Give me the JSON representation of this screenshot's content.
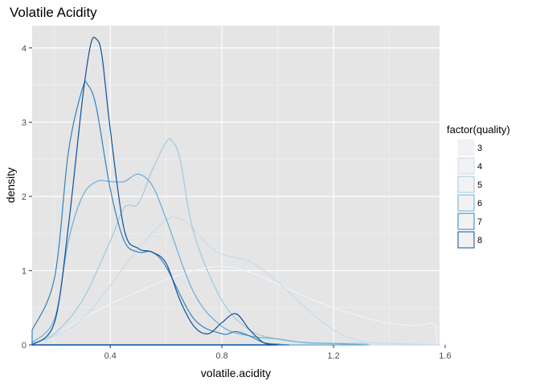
{
  "chart_data": {
    "type": "area",
    "title": "Volatile Acidity",
    "xlabel": "volatile.acidity",
    "ylabel": "density",
    "xlim": [
      0.12,
      1.58
    ],
    "ylim": [
      0,
      4.3
    ],
    "x_ticks": [
      0.4,
      0.8,
      1.2,
      1.6
    ],
    "x_tick_labels": [
      "0.4",
      "0.8",
      "1.2",
      "1.6"
    ],
    "y_ticks": [
      0,
      1,
      2,
      3,
      4
    ],
    "y_tick_labels": [
      "0",
      "1",
      "2",
      "3",
      "4"
    ],
    "grid": true,
    "background": "#e5e5e5",
    "legend": {
      "title": "factor(quality)",
      "position": "right",
      "items": [
        "3",
        "4",
        "5",
        "6",
        "7",
        "8"
      ]
    },
    "series": [
      {
        "name": "3",
        "color": "#eff3ff",
        "x": [
          0.12,
          0.2,
          0.3,
          0.4,
          0.5,
          0.6,
          0.7,
          0.8,
          0.9,
          1.0,
          1.1,
          1.2,
          1.3,
          1.4,
          1.5,
          1.56,
          1.57
        ],
        "y": [
          0.02,
          0.12,
          0.35,
          0.55,
          0.72,
          0.88,
          1.0,
          1.06,
          0.98,
          0.82,
          0.65,
          0.5,
          0.38,
          0.29,
          0.26,
          0.28,
          0.0
        ]
      },
      {
        "name": "4",
        "color": "#c6dbef",
        "x": [
          0.12,
          0.2,
          0.3,
          0.4,
          0.5,
          0.6,
          0.65,
          0.7,
          0.75,
          0.8,
          0.9,
          1.0,
          1.1,
          1.2,
          1.3,
          1.4,
          1.5,
          1.58
        ],
        "y": [
          0.02,
          0.12,
          0.35,
          0.8,
          1.3,
          1.68,
          1.7,
          1.55,
          1.35,
          1.22,
          1.12,
          0.85,
          0.5,
          0.2,
          0.05,
          0.02,
          0.01,
          0.0
        ]
      },
      {
        "name": "5",
        "color": "#9ecae1",
        "x": [
          0.12,
          0.2,
          0.3,
          0.4,
          0.45,
          0.5,
          0.55,
          0.6,
          0.62,
          0.65,
          0.7,
          0.8,
          0.9,
          1.0,
          1.1,
          1.2,
          1.3,
          1.33
        ],
        "y": [
          0.02,
          0.15,
          0.6,
          1.4,
          1.85,
          1.9,
          2.35,
          2.73,
          2.75,
          2.5,
          1.5,
          0.6,
          0.2,
          0.08,
          0.03,
          0.02,
          0.02,
          0.0
        ]
      },
      {
        "name": "6",
        "color": "#6baed6",
        "x": [
          0.12,
          0.2,
          0.25,
          0.3,
          0.35,
          0.4,
          0.45,
          0.5,
          0.55,
          0.6,
          0.7,
          0.8,
          0.9,
          1.0,
          1.1,
          1.2,
          1.32
        ],
        "y": [
          0.03,
          0.35,
          1.4,
          2.0,
          2.2,
          2.2,
          2.2,
          2.3,
          2.15,
          1.7,
          0.7,
          0.25,
          0.12,
          0.08,
          0.03,
          0.02,
          0.0
        ]
      },
      {
        "name": "7",
        "color": "#3182bd",
        "x": [
          0.12,
          0.2,
          0.25,
          0.3,
          0.32,
          0.35,
          0.4,
          0.45,
          0.5,
          0.55,
          0.6,
          0.7,
          0.8,
          0.85,
          0.9,
          0.95,
          1.0,
          1.04
        ],
        "y": [
          0.2,
          0.9,
          2.6,
          3.45,
          3.5,
          3.2,
          2.1,
          1.4,
          1.25,
          1.25,
          1.05,
          0.35,
          0.15,
          0.18,
          0.12,
          0.03,
          0.01,
          0.0
        ]
      },
      {
        "name": "8",
        "color": "#08519c",
        "x": [
          0.12,
          0.2,
          0.25,
          0.3,
          0.33,
          0.35,
          0.37,
          0.4,
          0.45,
          0.5,
          0.55,
          0.6,
          0.65,
          0.7,
          0.75,
          0.8,
          0.85,
          0.9,
          0.95,
          1.0
        ],
        "y": [
          0.0,
          0.3,
          1.6,
          3.3,
          4.05,
          4.12,
          3.9,
          2.9,
          1.55,
          1.3,
          1.25,
          1.1,
          0.6,
          0.25,
          0.15,
          0.3,
          0.42,
          0.2,
          0.03,
          0.0
        ]
      }
    ]
  }
}
